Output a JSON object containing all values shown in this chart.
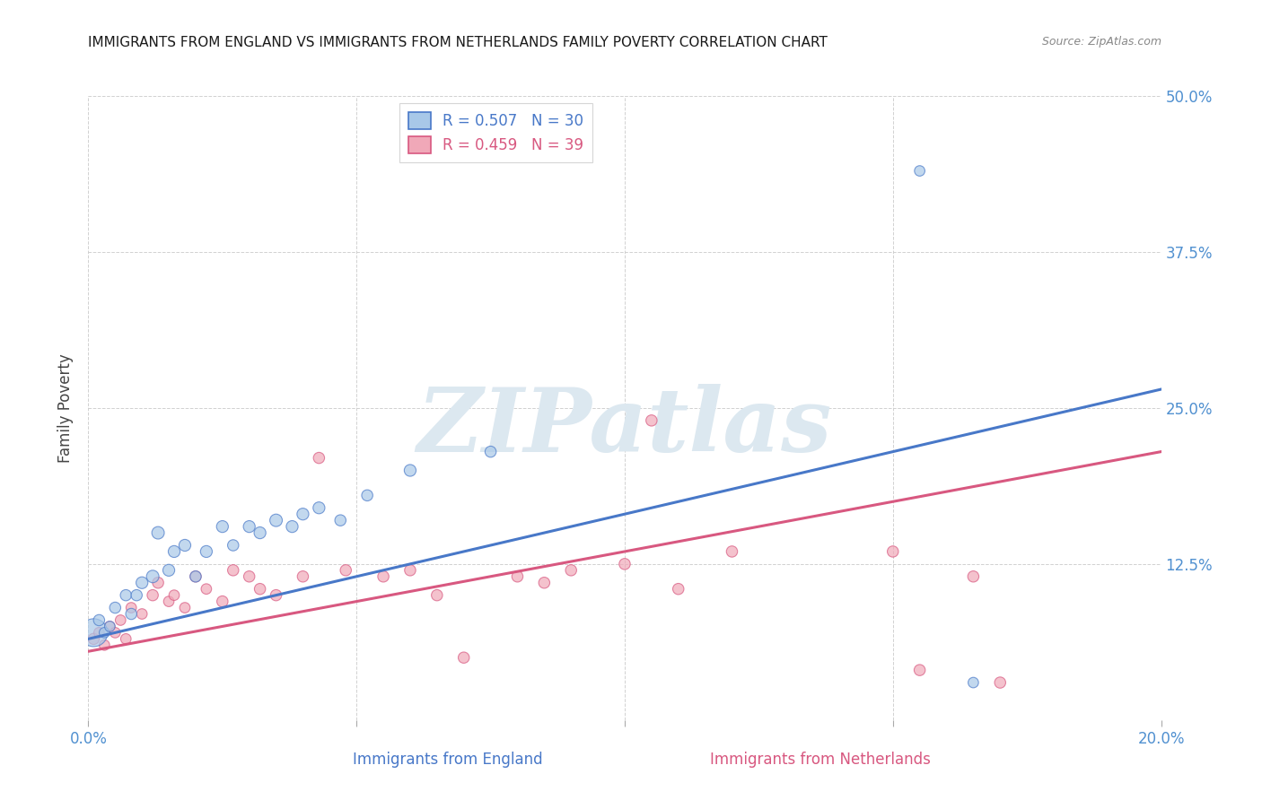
{
  "title": "IMMIGRANTS FROM ENGLAND VS IMMIGRANTS FROM NETHERLANDS FAMILY POVERTY CORRELATION CHART",
  "source": "Source: ZipAtlas.com",
  "xlabel_england": "Immigrants from England",
  "xlabel_netherlands": "Immigrants from Netherlands",
  "ylabel": "Family Poverty",
  "xlim": [
    0.0,
    0.2
  ],
  "ylim": [
    0.0,
    0.5
  ],
  "xticks": [
    0.0,
    0.05,
    0.1,
    0.15,
    0.2
  ],
  "yticks": [
    0.0,
    0.125,
    0.25,
    0.375,
    0.5
  ],
  "england_R": 0.507,
  "england_N": 30,
  "netherlands_R": 0.459,
  "netherlands_N": 39,
  "england_color": "#a8c8e8",
  "netherlands_color": "#f0a8b8",
  "england_line_color": "#4878c8",
  "netherlands_line_color": "#d85880",
  "tick_color": "#5090d0",
  "watermark_color": "#dce8f0",
  "england_line_x0": 0.0,
  "england_line_y0": 0.065,
  "england_line_x1": 0.2,
  "england_line_y1": 0.265,
  "netherlands_line_x0": 0.0,
  "netherlands_line_y0": 0.055,
  "netherlands_line_x1": 0.2,
  "netherlands_line_y1": 0.215,
  "england_x": [
    0.001,
    0.002,
    0.003,
    0.004,
    0.005,
    0.007,
    0.008,
    0.009,
    0.01,
    0.012,
    0.013,
    0.015,
    0.016,
    0.018,
    0.02,
    0.022,
    0.025,
    0.027,
    0.03,
    0.032,
    0.035,
    0.038,
    0.04,
    0.043,
    0.047,
    0.052,
    0.06,
    0.075,
    0.155,
    0.165
  ],
  "england_y": [
    0.07,
    0.08,
    0.07,
    0.075,
    0.09,
    0.1,
    0.085,
    0.1,
    0.11,
    0.115,
    0.15,
    0.12,
    0.135,
    0.14,
    0.115,
    0.135,
    0.155,
    0.14,
    0.155,
    0.15,
    0.16,
    0.155,
    0.165,
    0.17,
    0.16,
    0.18,
    0.2,
    0.215,
    0.44,
    0.03
  ],
  "england_size": [
    500,
    80,
    70,
    70,
    80,
    80,
    80,
    80,
    90,
    100,
    100,
    90,
    90,
    90,
    80,
    90,
    90,
    80,
    90,
    90,
    100,
    90,
    90,
    90,
    80,
    80,
    90,
    80,
    70,
    70
  ],
  "netherlands_x": [
    0.001,
    0.002,
    0.003,
    0.004,
    0.005,
    0.006,
    0.007,
    0.008,
    0.01,
    0.012,
    0.013,
    0.015,
    0.016,
    0.018,
    0.02,
    0.022,
    0.025,
    0.027,
    0.03,
    0.032,
    0.035,
    0.04,
    0.043,
    0.048,
    0.055,
    0.06,
    0.065,
    0.07,
    0.08,
    0.085,
    0.09,
    0.1,
    0.105,
    0.11,
    0.12,
    0.15,
    0.155,
    0.165,
    0.17
  ],
  "netherlands_y": [
    0.065,
    0.07,
    0.06,
    0.075,
    0.07,
    0.08,
    0.065,
    0.09,
    0.085,
    0.1,
    0.11,
    0.095,
    0.1,
    0.09,
    0.115,
    0.105,
    0.095,
    0.12,
    0.115,
    0.105,
    0.1,
    0.115,
    0.21,
    0.12,
    0.115,
    0.12,
    0.1,
    0.05,
    0.115,
    0.11,
    0.12,
    0.125,
    0.24,
    0.105,
    0.135,
    0.135,
    0.04,
    0.115,
    0.03
  ],
  "netherlands_size": [
    80,
    70,
    70,
    70,
    70,
    70,
    70,
    70,
    70,
    80,
    80,
    70,
    70,
    70,
    80,
    70,
    80,
    80,
    80,
    80,
    80,
    80,
    80,
    80,
    80,
    80,
    80,
    80,
    80,
    80,
    80,
    80,
    80,
    80,
    80,
    80,
    80,
    80,
    80
  ]
}
